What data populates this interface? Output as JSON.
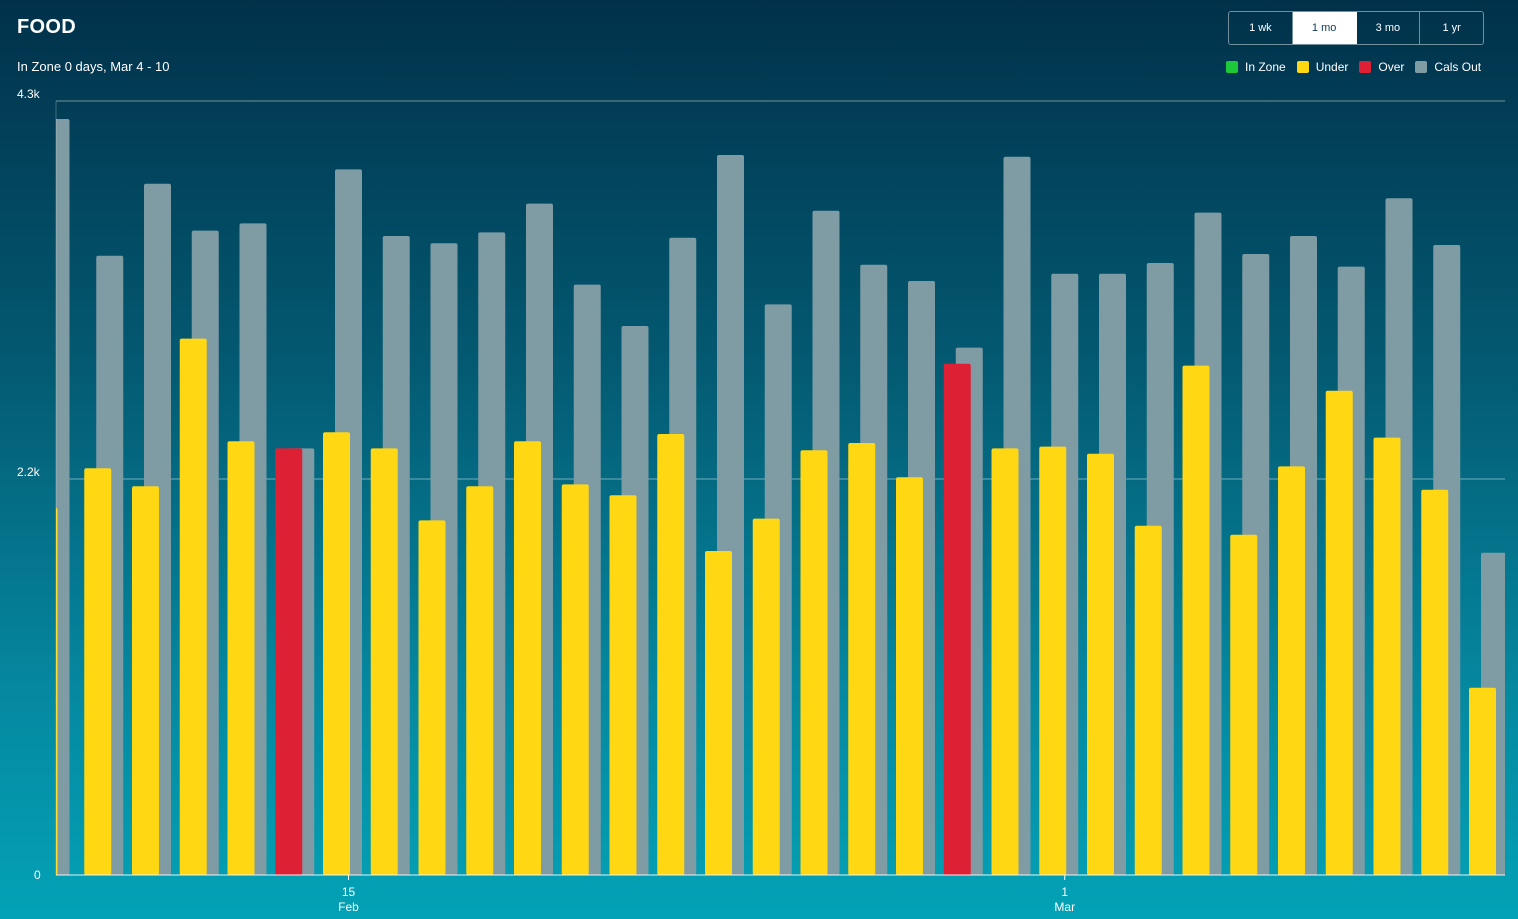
{
  "header": {
    "title": "FOOD",
    "subtitle": "In Zone 0 days, Mar 4 - 10"
  },
  "range_toggle": {
    "options": [
      "1 wk",
      "1 mo",
      "3 mo",
      "1 yr"
    ],
    "selected": "1 mo"
  },
  "legend": [
    {
      "label": "In Zone",
      "color": "#1ec93a"
    },
    {
      "label": "Under",
      "color": "#ffd713"
    },
    {
      "label": "Over",
      "color": "#de2035"
    },
    {
      "label": "Cals Out",
      "color": "#7f9ba4"
    }
  ],
  "chart_data": {
    "type": "bar",
    "y_ticks": [
      {
        "value": 0,
        "label": "0"
      },
      {
        "value": 2200,
        "label": "2.2k"
      },
      {
        "value": 4300,
        "label": "4.3k"
      }
    ],
    "ylim": [
      0,
      4300
    ],
    "x_labels": [
      {
        "index": 6,
        "line1": "15",
        "line2": "Feb"
      },
      {
        "index": 21,
        "line1": "1",
        "line2": "Mar"
      }
    ],
    "first_bar_partial": true,
    "series": [
      {
        "name": "Cals Out",
        "color": "#7f9ba4",
        "values": [
          4200,
          3440,
          3840,
          3580,
          3620,
          2370,
          3920,
          3550,
          3510,
          3570,
          3730,
          3280,
          3050,
          3540,
          4000,
          3170,
          3690,
          3390,
          3300,
          2930,
          3990,
          3340,
          3340,
          3400,
          3680,
          3450,
          3550,
          3380,
          3760,
          3500,
          1790
        ]
      },
      {
        "name": "Food",
        "values": [
          2040,
          2260,
          2160,
          2980,
          2410,
          2370,
          2460,
          2370,
          1970,
          2160,
          2410,
          2170,
          2110,
          2450,
          1800,
          1980,
          2360,
          2400,
          2210,
          2840,
          2370,
          2380,
          2340,
          1940,
          2830,
          1890,
          2270,
          2690,
          2430,
          2140,
          1040
        ],
        "status": [
          "Under",
          "Under",
          "Under",
          "Under",
          "Under",
          "Over",
          "Under",
          "Under",
          "Under",
          "Under",
          "Under",
          "Under",
          "Under",
          "Under",
          "Under",
          "Under",
          "Under",
          "Under",
          "Under",
          "Over",
          "Under",
          "Under",
          "Under",
          "Under",
          "Under",
          "Under",
          "Under",
          "Under",
          "Under",
          "Under",
          "Under"
        ]
      }
    ]
  }
}
